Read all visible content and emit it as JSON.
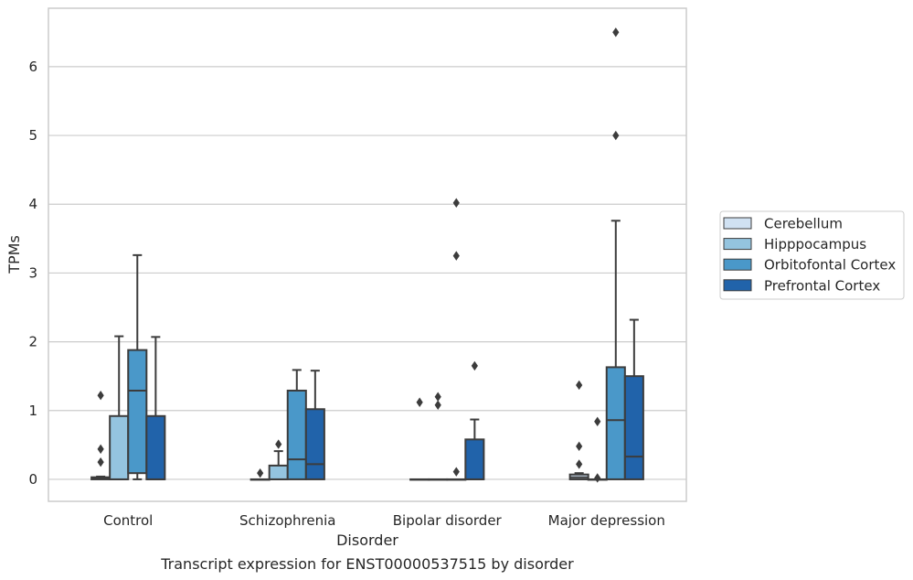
{
  "chart_data": {
    "type": "box",
    "title": "",
    "caption": "Transcript expression for ENST00000537515 by disorder",
    "xlabel": "Disorder",
    "ylabel": "TPMs",
    "ylim": [
      -0.32,
      6.85
    ],
    "yticks": [
      0,
      1,
      2,
      3,
      4,
      5,
      6
    ],
    "grid": true,
    "legend_position": "right",
    "categories": [
      "Control",
      "Schizophrenia",
      "Bipolar disorder",
      "Major depression"
    ],
    "series": [
      {
        "name": "Cerebellum",
        "color": "#d0e1f2",
        "boxes": [
          {
            "q1": 0,
            "median": 0.02,
            "q3": 0.03,
            "whisker_low": 0,
            "whisker_high": 0.04,
            "outliers": [
              1.22,
              0.44,
              0.25
            ]
          },
          {
            "q1": 0,
            "median": 0,
            "q3": 0,
            "whisker_low": 0,
            "whisker_high": 0,
            "outliers": [
              0.09
            ]
          },
          {
            "q1": 0,
            "median": 0,
            "q3": 0,
            "whisker_low": 0,
            "whisker_high": 0,
            "outliers": [
              1.12
            ]
          },
          {
            "q1": 0,
            "median": 0.03,
            "q3": 0.07,
            "whisker_low": 0,
            "whisker_high": 0.09,
            "outliers": [
              1.37,
              0.48,
              0.22
            ]
          }
        ]
      },
      {
        "name": "Hipppocampus",
        "color": "#94c4df",
        "boxes": [
          {
            "q1": 0,
            "median": 0,
            "q3": 0.92,
            "whisker_low": 0,
            "whisker_high": 2.08,
            "outliers": []
          },
          {
            "q1": 0,
            "median": 0,
            "q3": 0.2,
            "whisker_low": 0,
            "whisker_high": 0.41,
            "outliers": [
              0.51
            ]
          },
          {
            "q1": 0,
            "median": 0,
            "q3": 0,
            "whisker_low": 0,
            "whisker_high": 0,
            "outliers": [
              1.2,
              1.08
            ]
          },
          {
            "q1": 0,
            "median": 0,
            "q3": 0,
            "whisker_low": 0,
            "whisker_high": 0,
            "outliers": [
              0.84,
              0.02
            ]
          }
        ]
      },
      {
        "name": "Orbitofontal Cortex",
        "color": "#4a98c9",
        "boxes": [
          {
            "q1": 0.09,
            "median": 1.29,
            "q3": 1.88,
            "whisker_low": 0,
            "whisker_high": 3.26,
            "outliers": []
          },
          {
            "q1": 0,
            "median": 0.29,
            "q3": 1.29,
            "whisker_low": 0,
            "whisker_high": 1.59,
            "outliers": []
          },
          {
            "q1": 0,
            "median": 0,
            "q3": 0,
            "whisker_low": 0,
            "whisker_high": 0,
            "outliers": [
              4.02,
              3.25,
              0.11
            ]
          },
          {
            "q1": 0,
            "median": 0.86,
            "q3": 1.63,
            "whisker_low": 0,
            "whisker_high": 3.76,
            "outliers": [
              6.5,
              5.0
            ]
          }
        ]
      },
      {
        "name": "Prefrontal Cortex",
        "color": "#2163aa",
        "boxes": [
          {
            "q1": 0,
            "median": 0,
            "q3": 0.92,
            "whisker_low": 0,
            "whisker_high": 2.07,
            "outliers": []
          },
          {
            "q1": 0,
            "median": 0.22,
            "q3": 1.02,
            "whisker_low": 0,
            "whisker_high": 1.58,
            "outliers": []
          },
          {
            "q1": 0,
            "median": 0,
            "q3": 0.58,
            "whisker_low": 0,
            "whisker_high": 0.87,
            "outliers": [
              1.65
            ]
          },
          {
            "q1": 0,
            "median": 0.33,
            "q3": 1.5,
            "whisker_low": 0,
            "whisker_high": 2.32,
            "outliers": []
          }
        ]
      }
    ]
  }
}
